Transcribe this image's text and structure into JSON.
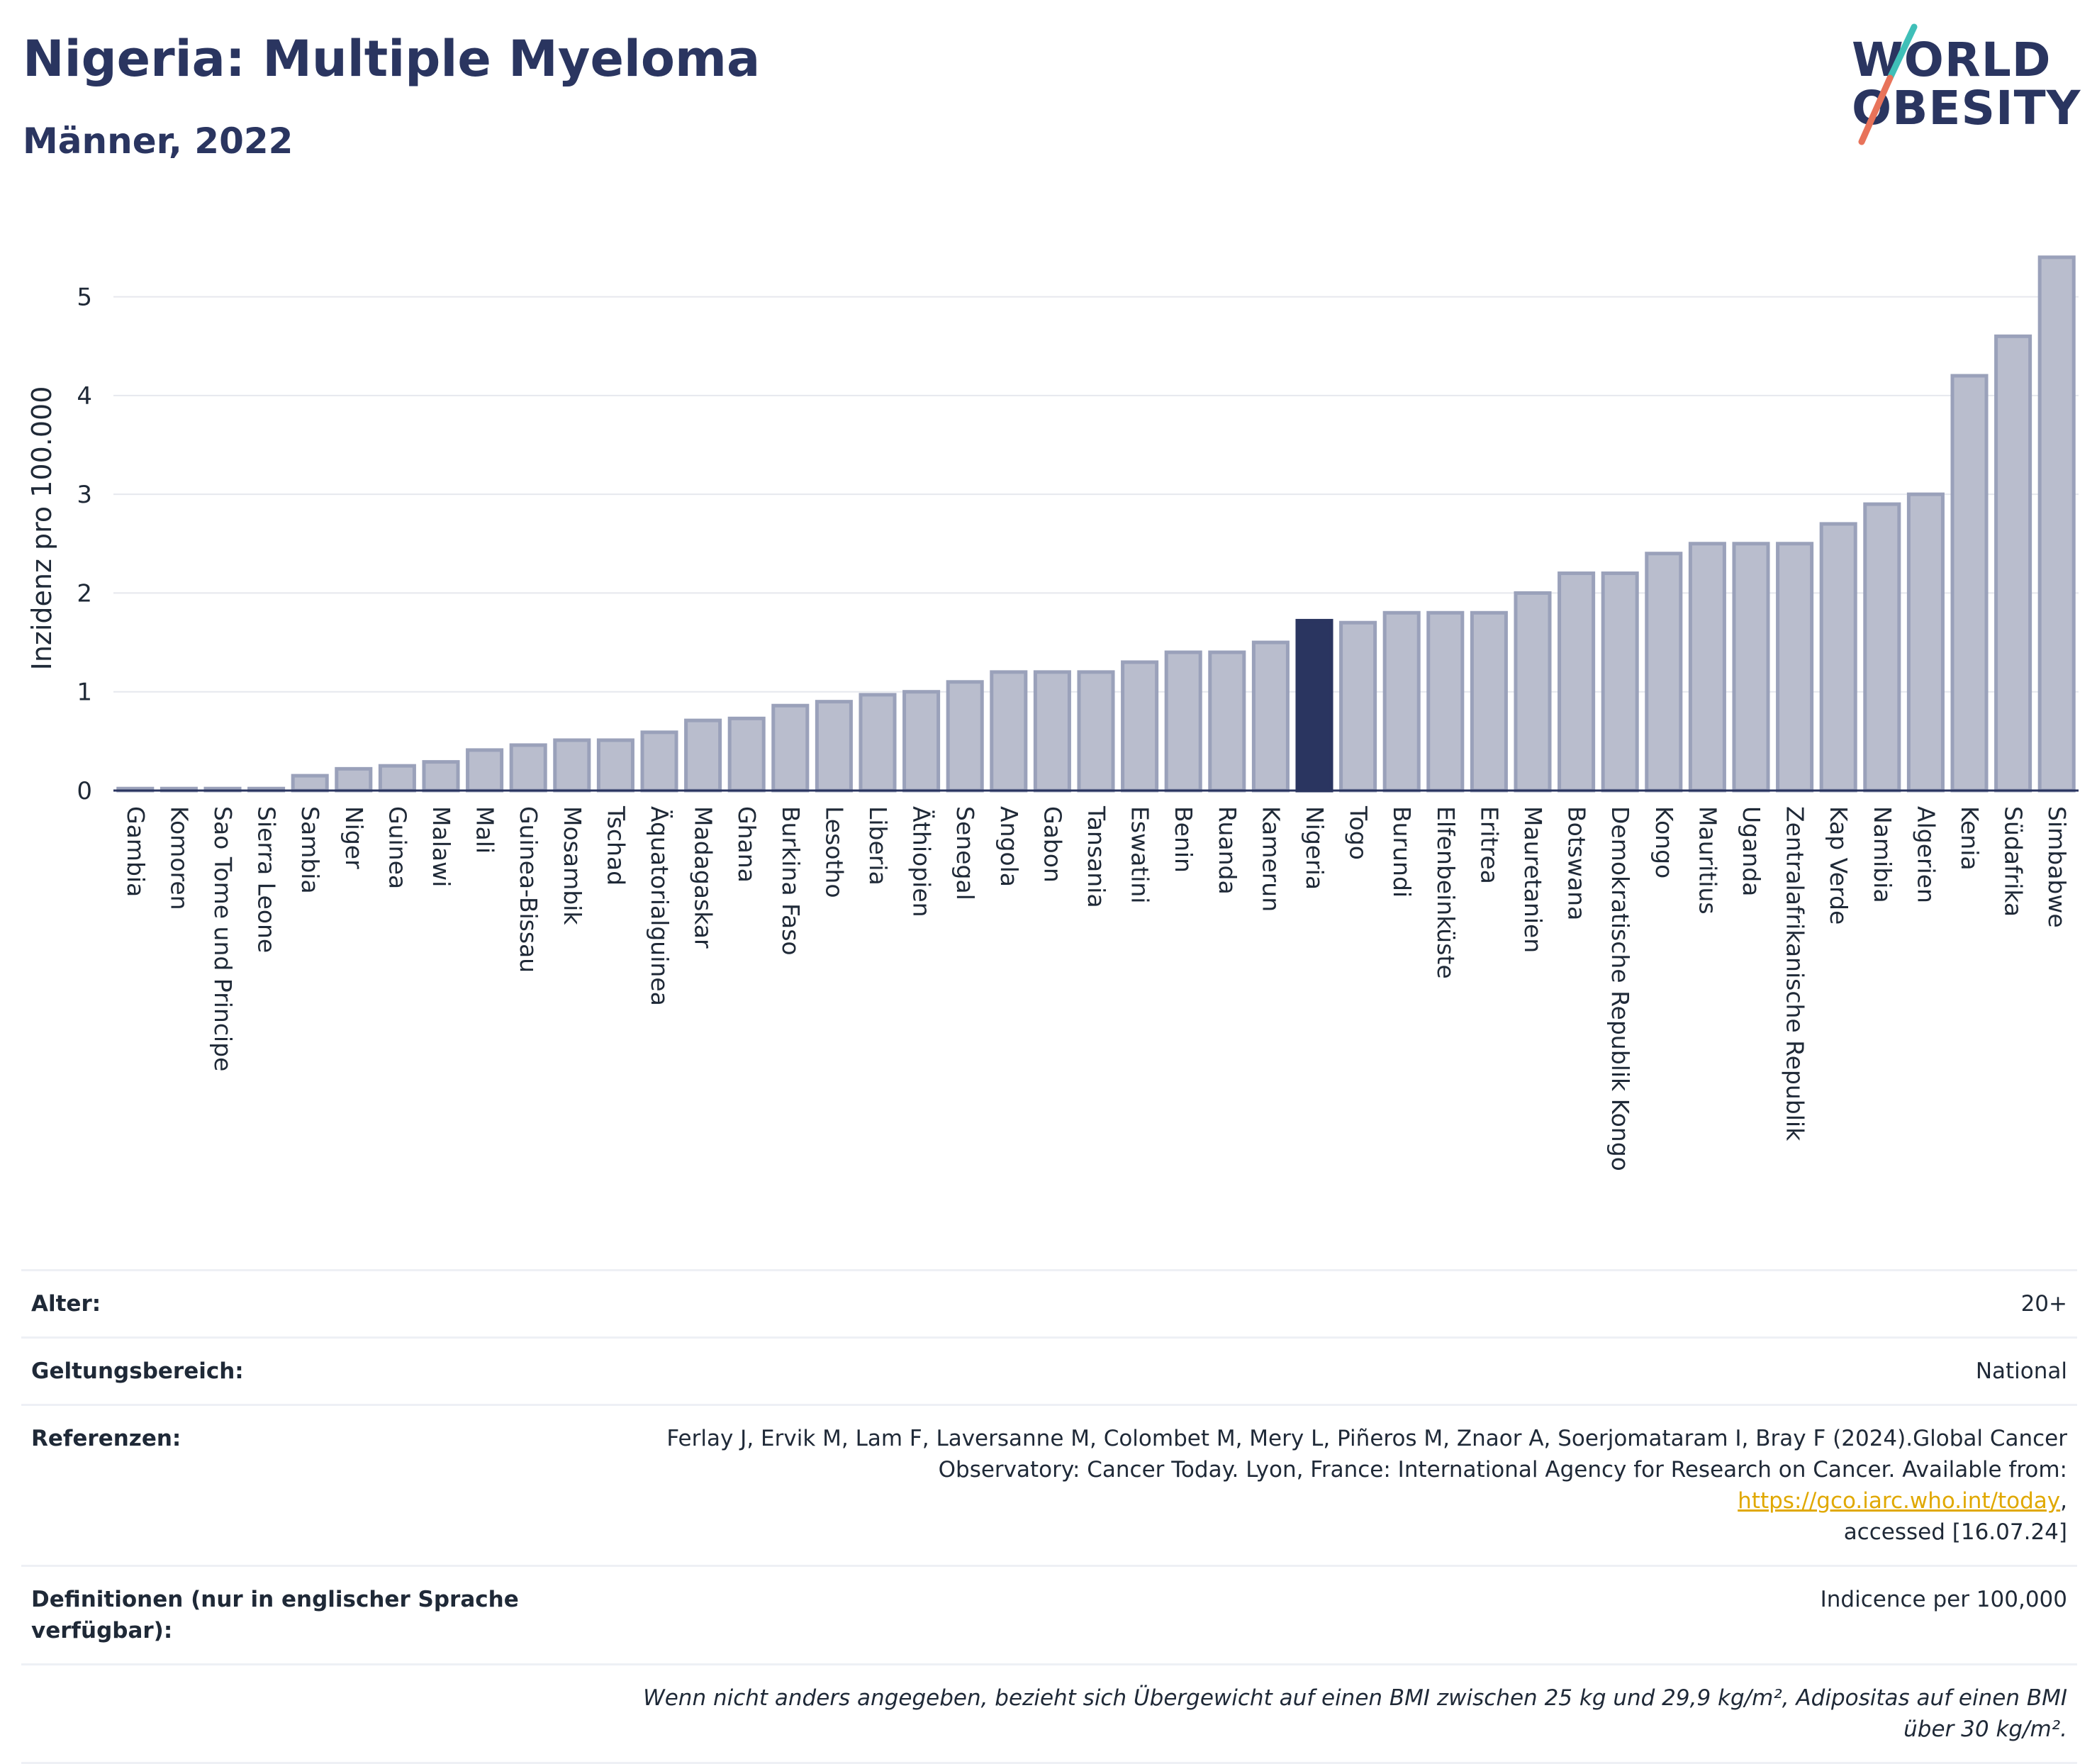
{
  "header": {
    "title": "Nigeria: Multiple Myeloma",
    "subtitle": "Männer, 2022"
  },
  "logo": {
    "line1": "WORLD",
    "line2": "OBESITY",
    "colors": {
      "text": "#2a3560",
      "slash_top": "#3fbfb8",
      "slash_bottom": "#e8735a"
    }
  },
  "chart_data": {
    "type": "bar",
    "title": "",
    "xlabel": "",
    "ylabel": "Inzidenz pro 100.000",
    "ylim": [
      0,
      5.6
    ],
    "yticks": [
      0,
      1,
      2,
      3,
      4,
      5
    ],
    "grid": true,
    "highlight": "Nigeria",
    "colors": {
      "bar": "#b9bdcd",
      "bar_edge": "#9aa1ba",
      "highlight": "#2a3560",
      "grid": "#e6e8ee",
      "axis": "#2a3560"
    },
    "categories": [
      "Gambia",
      "Komoren",
      "Sao Tome und Principe",
      "Sierra Leone",
      "Sambia",
      "Niger",
      "Guinea",
      "Malawi",
      "Mali",
      "Guinea-Bissau",
      "Mosambik",
      "Tschad",
      "Äquatorialguinea",
      "Madagaskar",
      "Ghana",
      "Burkina Faso",
      "Lesotho",
      "Liberia",
      "Äthiopien",
      "Senegal",
      "Angola",
      "Gabon",
      "Tansania",
      "Eswatini",
      "Benin",
      "Ruanda",
      "Kamerun",
      "Nigeria",
      "Togo",
      "Burundi",
      "Elfenbeinküste",
      "Eritrea",
      "Mauretanien",
      "Botswana",
      "Demokratische Republik Kongo",
      "Kongo",
      "Mauritius",
      "Uganda",
      "Zentralafrikanische Republik",
      "Kap Verde",
      "Namibia",
      "Algerien",
      "Kenia",
      "Südafrika",
      "Simbabwe"
    ],
    "values": [
      0.02,
      0.02,
      0.02,
      0.02,
      0.15,
      0.22,
      0.25,
      0.29,
      0.41,
      0.46,
      0.51,
      0.51,
      0.59,
      0.71,
      0.73,
      0.86,
      0.9,
      0.97,
      1.0,
      1.1,
      1.2,
      1.2,
      1.2,
      1.3,
      1.4,
      1.4,
      1.5,
      1.72,
      1.7,
      1.8,
      1.8,
      1.8,
      2.0,
      2.2,
      2.2,
      2.4,
      2.5,
      2.5,
      2.5,
      2.7,
      2.9,
      3.0,
      4.2,
      4.6,
      5.4
    ]
  },
  "meta": {
    "age_label": "Alter:",
    "age_value": "20+",
    "scope_label": "Geltungsbereich:",
    "scope_value": "National",
    "ref_label": "Referenzen:",
    "ref_text1": "Ferlay J, Ervik M, Lam F, Laversanne M, Colombet M, Mery L, Piñeros M, Znaor A, Soerjomataram I, Bray F (2024).Global Cancer",
    "ref_text2": "Observatory: Cancer Today. Lyon, France: International Agency for Research on Cancer. Available from: ",
    "ref_link": "https://gco.iarc.who.int/today",
    "ref_text3": ",",
    "ref_text4": "accessed [16.07.24]",
    "def_label": "Definitionen (nur in englischer Sprache verfügbar):",
    "def_value": "Indicence per 100,000",
    "note": "Wenn nicht anders angegeben, bezieht sich Übergewicht auf einen BMI zwischen 25 kg und 29,9 kg/m², Adipositas auf einen BMI über 30 kg/m²."
  }
}
